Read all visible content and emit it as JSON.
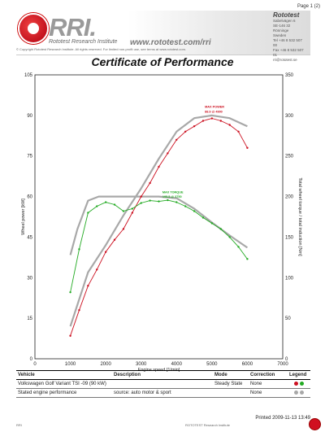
{
  "page": {
    "number": "Page 1 (2)"
  },
  "header": {
    "brand": "RRI.",
    "brand_name": "Rototest Research Institute",
    "website": "www.rototest.com/rri",
    "copyright": "© Copyright Rototest Research Institute. All rights reserved. For limited non-profit use, see terms at www.rototest.com.",
    "contact_title": "Rototest",
    "contact_lines": [
      "Sabelvägen 6",
      "SE-146 32 Rönninge",
      "Sweden",
      "Tel +46 8 532 507 00",
      "Fax +46 8 532 507 01",
      "rri@rototest.se"
    ]
  },
  "certificate_title": "Certificate of Performance",
  "chart_data": {
    "type": "line",
    "xlabel": "Engine speed [1/min]",
    "ylabel": "Wheel power [kW]",
    "y2label": "Total wheel torque / total induction [Nm]",
    "xlim": [
      0,
      7000
    ],
    "ylim": [
      0,
      105
    ],
    "y2lim": [
      0,
      350
    ],
    "x_ticks": [
      0,
      1000,
      2000,
      3000,
      4000,
      5000,
      6000,
      7000
    ],
    "y_ticks": [
      0,
      15,
      30,
      45,
      60,
      75,
      90,
      105
    ],
    "y2_ticks": [
      0,
      50,
      100,
      150,
      200,
      250,
      300,
      350
    ],
    "grid": true,
    "colors": {
      "power": "#cc1020",
      "torque": "#22aa22",
      "stated": "#a8a8a8"
    },
    "annotations": [
      {
        "text": "MAX POWER",
        "x": 4800,
        "y": 92.8,
        "color": "#cc1020"
      },
      {
        "text": "88.9 @ 4900",
        "x": 4800,
        "y": 91.0,
        "color": "#cc1020"
      },
      {
        "text": "MAX TORQUE",
        "x": 3600,
        "y": 61.2,
        "color": "#22aa22"
      },
      {
        "text": "195.5 @ 3750",
        "x": 3600,
        "y": 59.5,
        "color": "#22aa22"
      }
    ],
    "series": [
      {
        "axis": "y",
        "color": "#cc1020",
        "marker": true,
        "x": [
          1000,
          1250,
          1500,
          1750,
          2000,
          2250,
          2500,
          2750,
          3000,
          3250,
          3500,
          3750,
          4000,
          4250,
          4500,
          4750,
          5000,
          5250,
          5500,
          5750,
          6000
        ],
        "y": [
          8.5,
          18,
          27,
          33,
          39.5,
          44,
          48,
          54,
          60,
          65,
          71,
          76,
          81,
          84,
          86,
          88,
          88.9,
          88,
          86.5,
          84,
          78
        ]
      },
      {
        "axis": "y2",
        "color": "#22aa22",
        "marker": true,
        "x": [
          1000,
          1250,
          1500,
          1750,
          2000,
          2250,
          2500,
          2750,
          3000,
          3250,
          3500,
          3750,
          4000,
          4250,
          4500,
          4750,
          5000,
          5250,
          5500,
          5750,
          6000
        ],
        "y": [
          82,
          135,
          180,
          188,
          193,
          190,
          182,
          185,
          192,
          195,
          194,
          195.5,
          193,
          188,
          182,
          174,
          167,
          160,
          150,
          138,
          123
        ]
      },
      {
        "axis": "y",
        "color": "#a8a8a8",
        "marker": false,
        "x": [
          1000,
          1500,
          2000,
          2500,
          3000,
          3500,
          4000,
          4500,
          5000,
          5500,
          6000
        ],
        "y": [
          12,
          32,
          42,
          53,
          63,
          74,
          84,
          89,
          90,
          89,
          86
        ]
      },
      {
        "axis": "y2",
        "color": "#a8a8a8",
        "marker": false,
        "x": [
          1000,
          1200,
          1500,
          1800,
          2000,
          2500,
          3000,
          3500,
          4000,
          4500,
          5000,
          5500,
          6000
        ],
        "y": [
          128,
          160,
          195,
          200,
          200,
          200,
          200,
          200,
          198,
          185,
          168,
          152,
          137
        ]
      }
    ]
  },
  "legend": {
    "headers": {
      "vehicle": "Vehicle",
      "description": "Description",
      "mode": "Mode",
      "correction": "Correction",
      "legend": "Legend"
    },
    "rows": [
      {
        "vehicle": "Volkswagen Golf Variant TSI -09 (90 kW)",
        "description": "",
        "mode": "Steady State",
        "correction": "None",
        "dot1": "#cc1020",
        "dot2": "#22aa22"
      },
      {
        "vehicle": "Stated engine performance",
        "description": "source: auto motor & sport",
        "mode": "",
        "correction": "None",
        "dot1": "#a8a8a8",
        "dot2": "#a8a8a8"
      }
    ]
  },
  "printed": "Printed 2009-11-13 13:49",
  "footer": {
    "left": "RRI",
    "mid": "ROTOTEST Research Institute"
  }
}
